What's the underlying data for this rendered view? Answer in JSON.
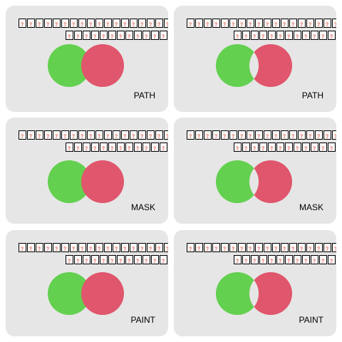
{
  "tiles": [
    {
      "id": "path-normal",
      "label": "PATH",
      "cutout": false,
      "line1": "❓❓❓❓❓❓❓❓❓❓❓❓❓❓❓❓❓❓❓❓",
      "line2": "❓❓❓❓❓❓❓❓❓❓❓❓❓❓"
    },
    {
      "id": "path-cutout",
      "label": "PATH",
      "cutout": true,
      "line1": "❓❓❓❓❓❓❓❓❓❓❓❓❓❓❓❓❓❓❓❓",
      "line2": "❓❓❓❓❓❓❓❓❓❓❓❓❓❓"
    },
    {
      "id": "mask-normal",
      "label": "MASK",
      "cutout": false,
      "line1": "❓❓❓❓❓❓❓❓❓❓❓❓❓❓❓❓❓❓❓❓",
      "line2": "❓❓❓❓❓❓❓❓❓❓❓❓❓❓"
    },
    {
      "id": "mask-cutout",
      "label": "MASK",
      "cutout": true,
      "line1": "❓❓❓❓❓❓❓❓❓❓❓❓❓❓❓❓❓❓❓❓",
      "line2": "❓❓❓❓❓❓❓❓❓❓❓❓❓❓"
    },
    {
      "id": "paint-normal",
      "label": "PAINT",
      "cutout": false,
      "line1": "❓❓❓❓❓❓❓❓❓❓❓❓❓❓❓❓❓❓❓❓",
      "line2": "❓❓❓❓❓❓❓❓❓❓❓❓❓❓"
    },
    {
      "id": "paint-cutout",
      "label": "PAINT",
      "cutout": true,
      "line1": "❓❓❓❓❓❓❓❓❓❓❓❓❓❓❓❓❓❓❓❓",
      "line2": "❓❓❓❓❓❓❓❓❓❓❓❓❓❓"
    }
  ],
  "colors": {
    "tile_background": "#e6e6e6",
    "left_circle": "#63d04f",
    "right_circle": "#e0566c",
    "cutout": "#e6e6e6"
  },
  "icons": {
    "left_shape": "green-circle-icon",
    "right_shape": "red-circle-icon",
    "missing_glyph": "missing-glyph-icon"
  }
}
